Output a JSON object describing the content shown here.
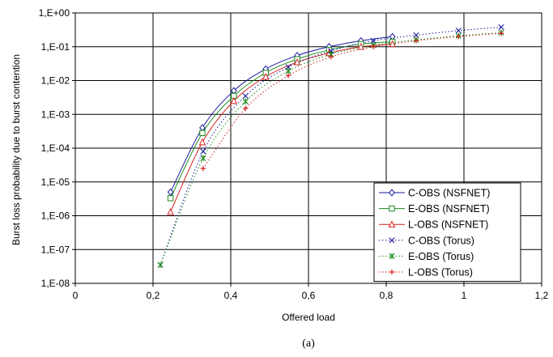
{
  "chart_data": {
    "type": "line",
    "xlabel": "Offered load",
    "ylabel": "Burst loss probability due to burst contention",
    "caption": "(a)",
    "xlim": [
      0,
      1.2
    ],
    "ylim_log10": [
      -8,
      0
    ],
    "log_y": true,
    "grid": true,
    "legend_position": "bottom-right",
    "x_ticks": [
      0,
      0.2,
      0.4,
      0.6,
      0.8,
      1,
      1.2
    ],
    "x_tick_labels": [
      "0",
      "0,2",
      "0,4",
      "0,6",
      "0,8",
      "1",
      "1,2"
    ],
    "y_ticks": [
      1e-08,
      1e-07,
      1e-06,
      1e-05,
      0.0001,
      0.001,
      0.01,
      0.1,
      1
    ],
    "y_tick_labels": [
      "1,E-08",
      "1,E-07",
      "1,E-06",
      "1,E-05",
      "1,E-04",
      "1,E-03",
      "1,E-02",
      "1,E-01",
      "1,E+00"
    ],
    "series": [
      {
        "name": "C-OBS (NSFNET)",
        "color": "#1a1aa0",
        "marker": "diamond",
        "dash": "solid",
        "x": [
          0.245,
          0.327,
          0.408,
          0.49,
          0.571,
          0.653,
          0.735,
          0.816
        ],
        "y": [
          5e-06,
          0.0004,
          0.005,
          0.022,
          0.055,
          0.1,
          0.15,
          0.2
        ]
      },
      {
        "name": "E-OBS (NSFNET)",
        "color": "#1a8a1a",
        "marker": "square",
        "dash": "solid",
        "x": [
          0.245,
          0.327,
          0.408,
          0.49,
          0.571,
          0.653,
          0.735,
          0.816
        ],
        "y": [
          3.3e-06,
          0.00028,
          0.0035,
          0.017,
          0.043,
          0.08,
          0.12,
          0.14
        ]
      },
      {
        "name": "L-OBS (NSFNET)",
        "color": "#d42020",
        "marker": "triangle",
        "dash": "solid",
        "x": [
          0.245,
          0.327,
          0.408,
          0.49,
          0.571,
          0.653,
          0.735,
          0.816
        ],
        "y": [
          1.3e-06,
          0.00015,
          0.0025,
          0.013,
          0.035,
          0.065,
          0.1,
          0.12
        ]
      },
      {
        "name": "C-OBS (Torus)",
        "color": "#1a1aa0",
        "marker": "x",
        "dash": "dotted",
        "x": [
          0.219,
          0.329,
          0.438,
          0.548,
          0.658,
          0.767,
          0.877,
          0.986,
          1.096
        ],
        "y": [
          3.5e-08,
          8e-05,
          0.0035,
          0.025,
          0.075,
          0.15,
          0.22,
          0.3,
          0.38
        ]
      },
      {
        "name": "E-OBS (Torus)",
        "color": "#1a8a1a",
        "marker": "asterisk",
        "dash": "dotted",
        "x": [
          0.219,
          0.329,
          0.438,
          0.548,
          0.658,
          0.767,
          0.877,
          0.986,
          1.096
        ],
        "y": [
          3.5e-08,
          5e-05,
          0.0024,
          0.019,
          0.06,
          0.11,
          0.16,
          0.21,
          0.26
        ]
      },
      {
        "name": "L-OBS (Torus)",
        "color": "#d42020",
        "marker": "plus",
        "dash": "dotted",
        "x": [
          0.329,
          0.438,
          0.548,
          0.658,
          0.767,
          0.877,
          0.986,
          1.096
        ],
        "y": [
          2.5e-05,
          0.0015,
          0.014,
          0.05,
          0.1,
          0.15,
          0.2,
          0.25
        ]
      }
    ]
  }
}
